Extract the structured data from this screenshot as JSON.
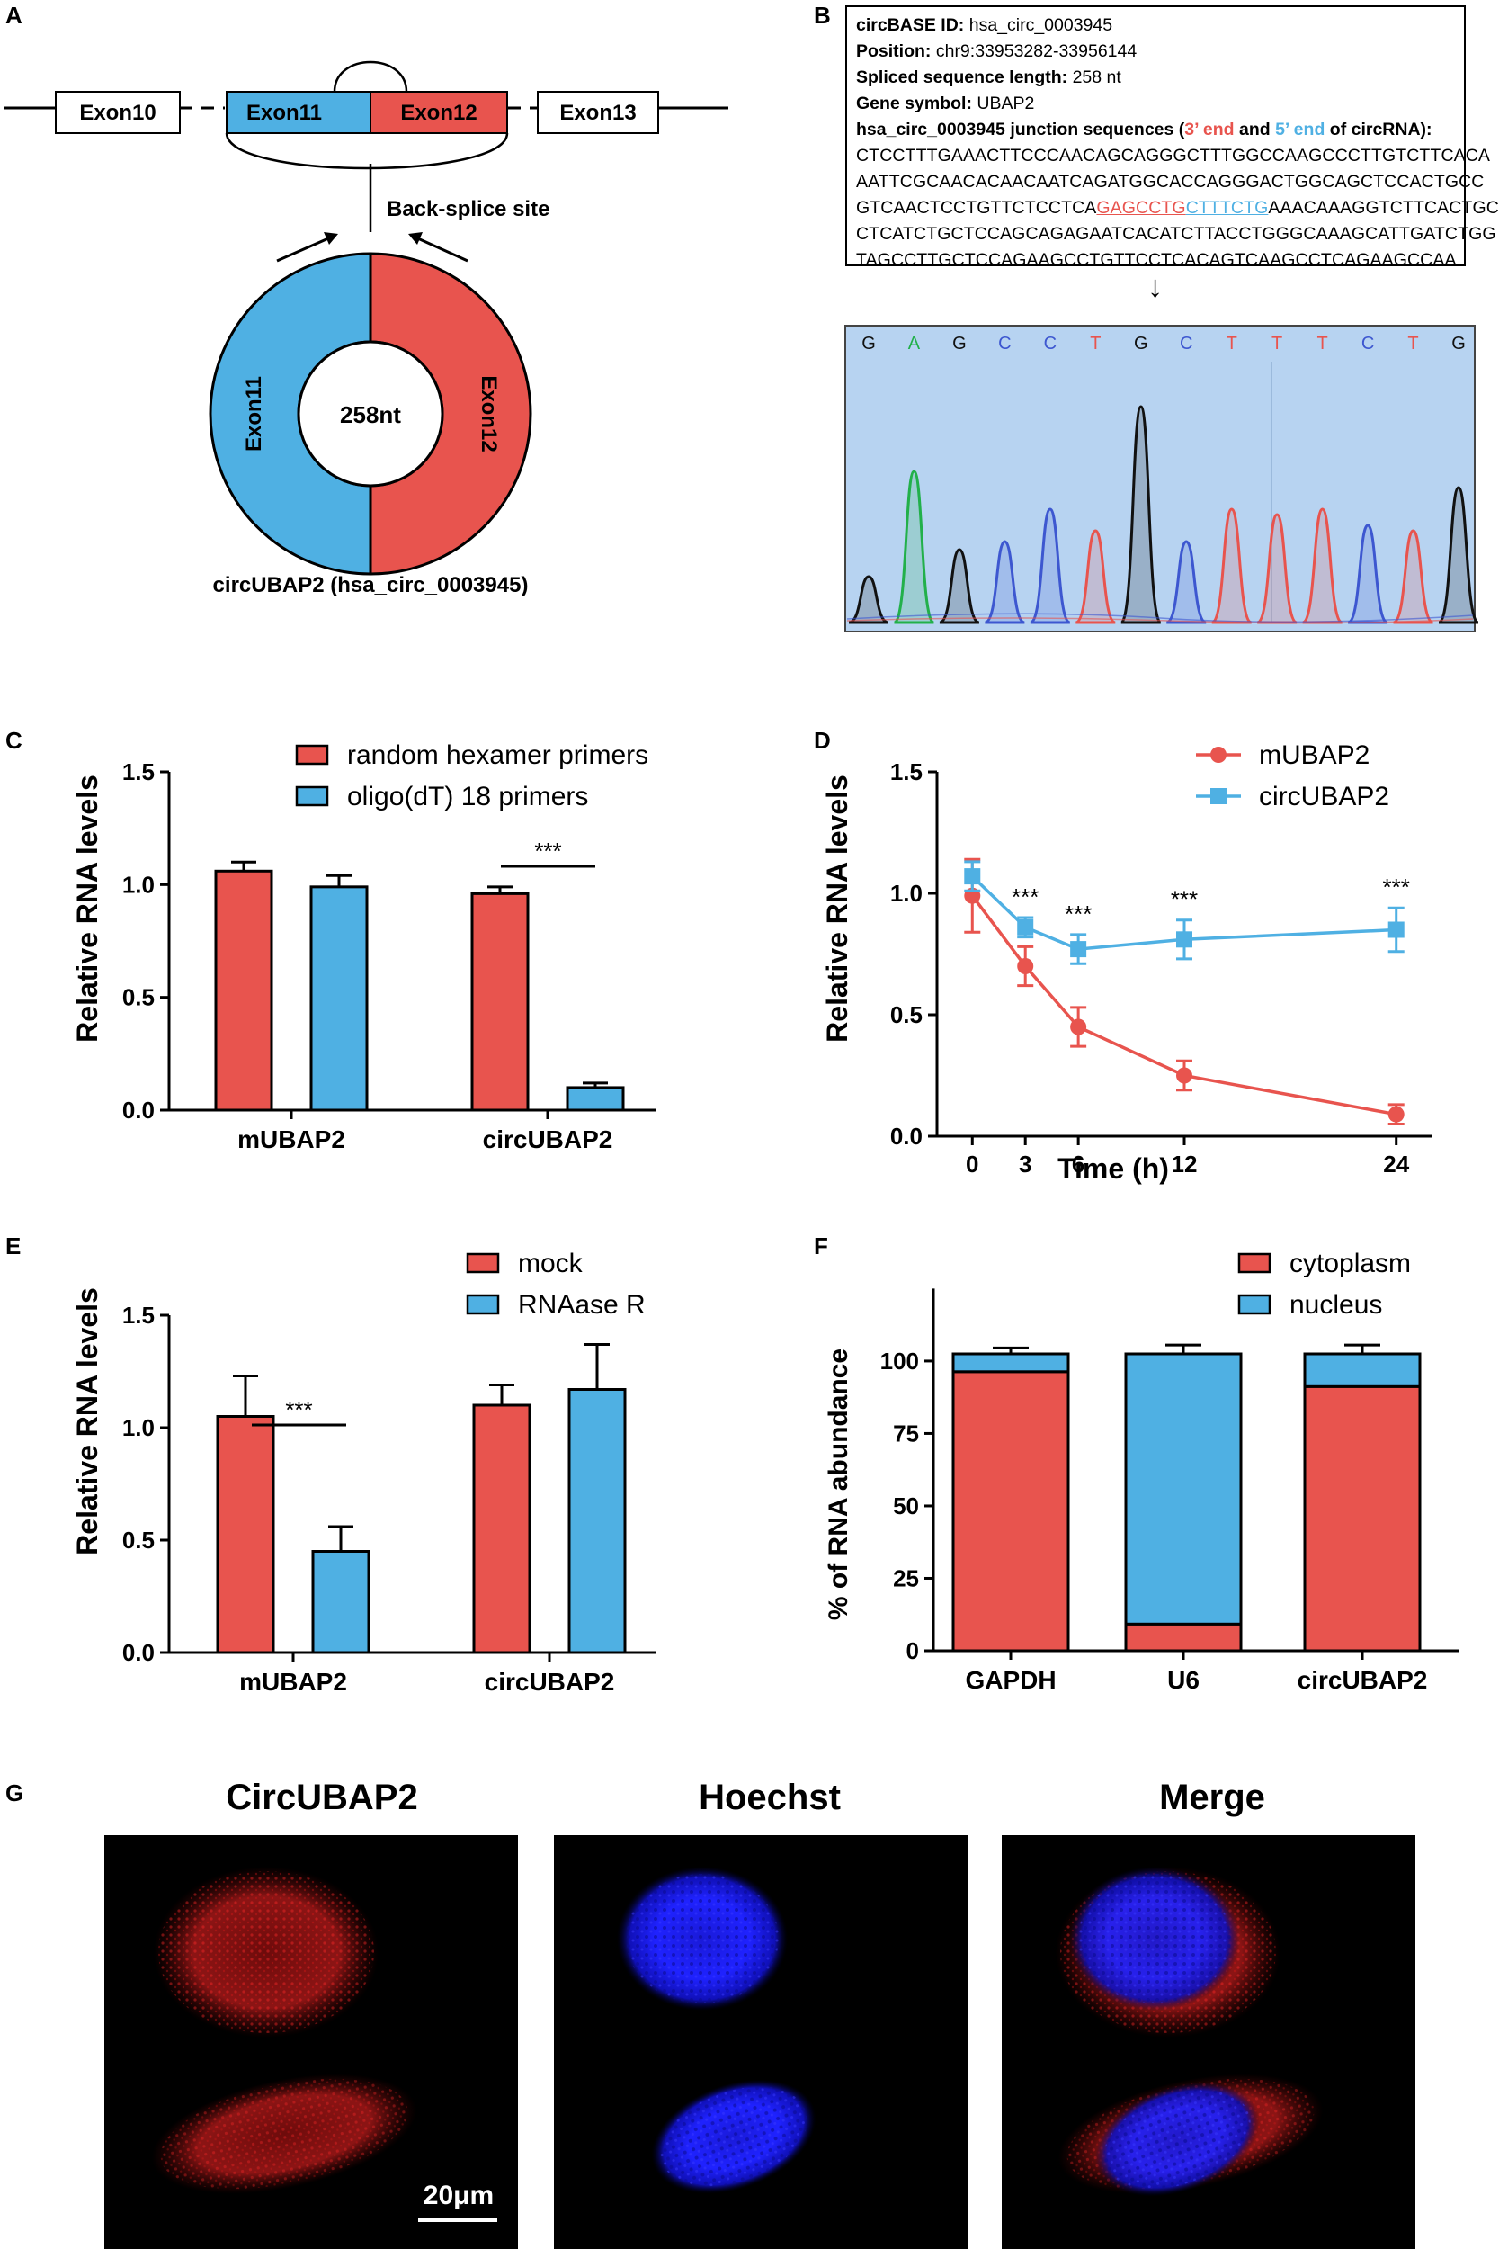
{
  "panels": {
    "A": "A",
    "B": "B",
    "C": "C",
    "D": "D",
    "E": "E",
    "F": "F",
    "G": "G"
  },
  "panelA": {
    "exon10": "Exon10",
    "exon11": "Exon11",
    "exon12": "Exon12",
    "exon13": "Exon13",
    "backsplice": "Back-splice site",
    "ring_left": "Exon11",
    "ring_right": "Exon12",
    "ring_center": "258nt",
    "caption": "circUBAP2 (hsa_circ_0003945)",
    "colors": {
      "blue": "#4fb0e3",
      "red": "#e8544e"
    }
  },
  "panelB": {
    "id_label": "circBASE ID:",
    "id_value": "hsa_circ_0003945",
    "pos_label": "Position:",
    "pos_value": "chr9:33953282-33956144",
    "len_label": "Spliced sequence length:",
    "len_value": "258 nt",
    "gene_label": "Gene symbol:",
    "gene_value": "UBAP2",
    "junction_a": "hsa_circ_0003945 junction sequences (",
    "junction_3": "3’ end",
    "junction_and": "and",
    "junction_5": "5’ end",
    "junction_b": "of circRNA):",
    "seq1": "CTCCTTTGAAACTTCCCAACAGCAGGGCTTTGGCCAAGCCCTTGTCTTCACA",
    "seq2": "AATTCGCAACACAACAATCAGATGGCACCAGGGACTGGCAGCTCCACTGCC",
    "seq3_pre": "GTCAACTCCTGTTCTCCTCA",
    "seq3_red": "GAGCCTG",
    "seq3_blue": "CTTTCTG",
    "seq3_post": "AAACAAAGGTCTTCACTGC",
    "seq4": "CTCATCTGCTCCAGCAGAGAATCACATCTTACCTGGGCAAAGCATTGATCTGG",
    "seq5": "TAGCCTTGCTCCAGAAGCCTGTTCCTCACAGTCAAGCCTCAGAAGCCAA",
    "arrow": "↓",
    "chromatogram_bases": [
      "G",
      "A",
      "G",
      "C",
      "C",
      "T",
      "G",
      "C",
      "T",
      "T",
      "T",
      "C",
      "T",
      "G"
    ]
  },
  "chart_data": [
    {
      "panel": "C",
      "type": "bar",
      "categories": [
        "mUBAP2",
        "circUBAP2"
      ],
      "series": [
        {
          "name": "random hexamer primers",
          "color": "#e8544e",
          "values": [
            1.06,
            0.96
          ],
          "errors": [
            0.04,
            0.03
          ]
        },
        {
          "name": "oligo(dT) 18 primers",
          "color": "#4fb0e3",
          "values": [
            0.99,
            0.1
          ],
          "errors": [
            0.05,
            0.02
          ]
        }
      ],
      "ylabel": "Relative RNA levels",
      "ylim": [
        0,
        1.5
      ],
      "yticks": [
        "0.0",
        "0.5",
        "1.0",
        "1.5"
      ],
      "significance": "***"
    },
    {
      "panel": "D",
      "type": "line",
      "x": [
        0,
        3,
        6,
        12,
        24
      ],
      "xticks": [
        "0",
        "3",
        "6",
        "12",
        "24"
      ],
      "series": [
        {
          "name": "mUBAP2",
          "color": "#e8544e",
          "marker": "circle",
          "values": [
            0.99,
            0.7,
            0.45,
            0.25,
            0.09
          ],
          "errors": [
            0.15,
            0.08,
            0.08,
            0.06,
            0.04
          ]
        },
        {
          "name": "circUBAP2",
          "color": "#4fb0e3",
          "marker": "square",
          "values": [
            1.07,
            0.86,
            0.77,
            0.81,
            0.85
          ],
          "errors": [
            0.06,
            0.04,
            0.06,
            0.08,
            0.09
          ]
        }
      ],
      "xlabel": "Time (h)",
      "ylabel": "Relative RNA levels",
      "xlim": [
        -2,
        26
      ],
      "ylim": [
        0,
        1.5
      ],
      "yticks": [
        "0.0",
        "0.5",
        "1.0",
        "1.5"
      ],
      "significance": [
        "***",
        "***",
        "***",
        "***"
      ],
      "significance_x": [
        3,
        6,
        12,
        24
      ]
    },
    {
      "panel": "E",
      "type": "bar",
      "categories": [
        "mUBAP2",
        "circUBAP2"
      ],
      "series": [
        {
          "name": "mock",
          "color": "#e8544e",
          "values": [
            1.05,
            1.1
          ],
          "errors": [
            0.18,
            0.09
          ]
        },
        {
          "name": "RNAase R",
          "color": "#4fb0e3",
          "values": [
            0.45,
            1.17
          ],
          "errors": [
            0.11,
            0.2
          ]
        }
      ],
      "ylabel": "Relative RNA levels",
      "ylim": [
        0,
        1.5
      ],
      "yticks": [
        "0.0",
        "0.5",
        "1.0",
        "1.5"
      ],
      "significance": "***"
    },
    {
      "panel": "F",
      "type": "bar",
      "stacked": true,
      "categories": [
        "GAPDH",
        "U6",
        "circUBAP2"
      ],
      "series": [
        {
          "name": "cytoplasm",
          "color": "#e8544e",
          "values": [
            94,
            9,
            89
          ],
          "errors": [
            2,
            3,
            3
          ]
        },
        {
          "name": "nucleus",
          "color": "#4fb0e3",
          "values": [
            6,
            91,
            11
          ],
          "errors": [
            2,
            3,
            3
          ]
        }
      ],
      "ylabel": "% of RNA abundance",
      "ylim": [
        0,
        125
      ],
      "yticks": [
        "0",
        "25",
        "50",
        "75",
        "100"
      ]
    }
  ],
  "panelG": {
    "title1": "CircUBAP2",
    "title2": "Hoechst",
    "title3": "Merge",
    "scalebar": "20μm"
  }
}
